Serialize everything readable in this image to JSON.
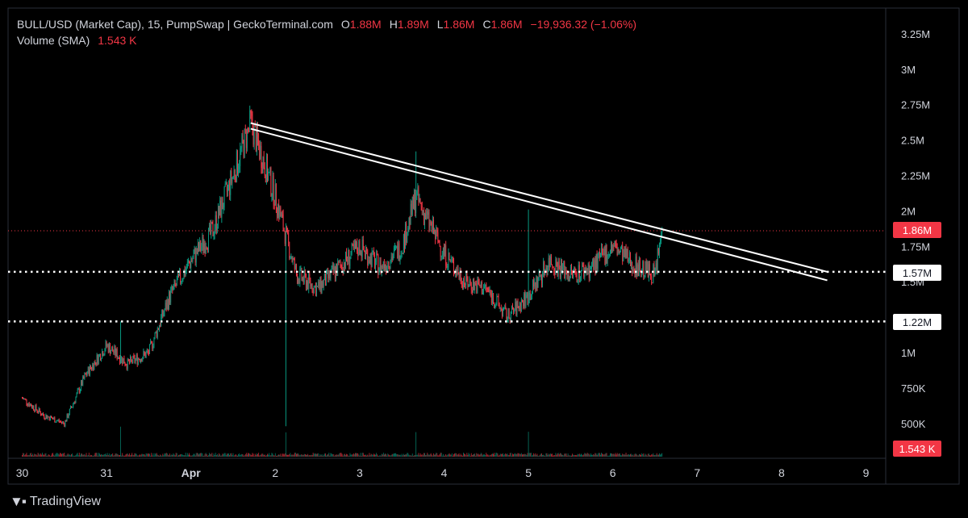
{
  "legend": {
    "symbol": "BULL/USD (Market Cap), 15, PumpSwap | GeckoTerminal.com",
    "o_label": "O",
    "o_value": "1.88M",
    "h_label": "H",
    "h_value": "1.89M",
    "l_label": "L",
    "l_value": "1.86M",
    "c_label": "C",
    "c_value": "1.86M",
    "change": "−19,936.32 (−1.06%)",
    "volume_label": "Volume (SMA)",
    "volume_value": "1.543 K"
  },
  "price_axis": {
    "ticks": [
      "3.25M",
      "3M",
      "2.75M",
      "2.5M",
      "2.25M",
      "2M",
      "1.75M",
      "1.5M",
      "1M",
      "750K",
      "500K"
    ]
  },
  "time_axis": {
    "ticks": [
      "30",
      "31",
      "Apr",
      "2",
      "3",
      "4",
      "5",
      "6",
      "7",
      "8",
      "9"
    ]
  },
  "price_labels": {
    "current": "1.86M",
    "level_high": "1.57M",
    "level_low": "1.22M",
    "volume": "1.543 K"
  },
  "footer": {
    "brand": "TradingView"
  },
  "colors": {
    "up": "#089981",
    "down": "#f23645",
    "background": "#000000",
    "axis_text": "#d1d4dc",
    "current_price": "#f23645",
    "level_line": "#ffffff",
    "trendline": "#ffffff"
  },
  "chart_data": {
    "type": "candlestick",
    "x_unit": "date (Mar 30 – Apr 9), 15-minute candles",
    "y_unit": "market cap (USD)",
    "ylim": [
      300000,
      3350000
    ],
    "price_path": [
      [
        "Mar 30 00:00",
        680000
      ],
      [
        "Mar 30 06:00",
        560000
      ],
      [
        "Mar 30 12:00",
        500000
      ],
      [
        "Mar 30 18:00",
        840000
      ],
      [
        "Mar 31 00:00",
        1050000
      ],
      [
        "Mar 31 06:00",
        920000
      ],
      [
        "Mar 31 12:00",
        1000000
      ],
      [
        "Mar 31 18:00",
        1400000
      ],
      [
        "Apr 1 00:00",
        1650000
      ],
      [
        "Apr 1 06:00",
        1850000
      ],
      [
        "Apr 1 12:00",
        2250000
      ],
      [
        "Apr 1 17:00",
        2620000
      ],
      [
        "Apr 2 00:00",
        2100000
      ],
      [
        "Apr 2 06:00",
        1550000
      ],
      [
        "Apr 2 12:00",
        1450000
      ],
      [
        "Apr 2 18:00",
        1600000
      ],
      [
        "Apr 3 00:00",
        1750000
      ],
      [
        "Apr 3 06:00",
        1600000
      ],
      [
        "Apr 3 12:00",
        1750000
      ],
      [
        "Apr 3 16:00",
        2100000
      ],
      [
        "Apr 4 00:00",
        1700000
      ],
      [
        "Apr 4 06:00",
        1500000
      ],
      [
        "Apr 4 12:00",
        1450000
      ],
      [
        "Apr 4 18:00",
        1250000
      ],
      [
        "Apr 5 00:00",
        1400000
      ],
      [
        "Apr 5 06:00",
        1650000
      ],
      [
        "Apr 5 12:00",
        1550000
      ],
      [
        "Apr 5 18:00",
        1600000
      ],
      [
        "Apr 6 00:00",
        1750000
      ],
      [
        "Apr 6 06:00",
        1620000
      ],
      [
        "Apr 6 12:00",
        1550000
      ],
      [
        "Apr 6 14:00",
        1860000
      ]
    ],
    "spikes": [
      {
        "time": "Mar 31 04:00",
        "high": 1220000
      },
      {
        "time": "Apr 2 03:00",
        "low": 480000
      },
      {
        "time": "Apr 3 16:00",
        "high": 2420000
      },
      {
        "time": "Apr 5 00:00",
        "high": 2010000
      }
    ],
    "current_price": 1860000,
    "horizontal_levels": [
      1570000,
      1220000
    ],
    "trendlines": [
      {
        "from": [
          "Apr 1 17:00",
          2620000
        ],
        "to": [
          "Apr 8 13:00",
          1570000
        ]
      },
      {
        "from": [
          "Apr 1 17:00",
          2580000
        ],
        "to": [
          "Apr 8 13:00",
          1510000
        ]
      }
    ]
  }
}
